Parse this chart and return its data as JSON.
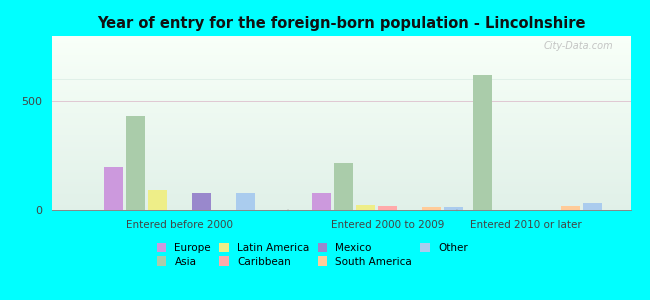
{
  "title": "Year of entry for the foreign-born population - Lincolnshire",
  "groups": [
    "Entered before 2000",
    "Entered 2000 to 2009",
    "Entered 2010 or later"
  ],
  "categories": [
    "Europe",
    "Asia",
    "Latin America",
    "Caribbean",
    "Mexico",
    "South America",
    "Other"
  ],
  "colors": {
    "Europe": "#cc99dd",
    "Asia": "#aaccaa",
    "Latin America": "#eeee88",
    "Caribbean": "#ffaaaa",
    "Mexico": "#9988cc",
    "South America": "#ffcc99",
    "Other": "#aaccee"
  },
  "values": {
    "Entered before 2000": {
      "Europe": 200,
      "Asia": 430,
      "Latin America": 90,
      "Caribbean": 0,
      "Mexico": 80,
      "South America": 0,
      "Other": 80
    },
    "Entered 2000 to 2009": {
      "Europe": 80,
      "Asia": 215,
      "Latin America": 25,
      "Caribbean": 18,
      "Mexico": 0,
      "South America": 12,
      "Other": 12
    },
    "Entered 2010 or later": {
      "Europe": 0,
      "Asia": 620,
      "Latin America": 0,
      "Caribbean": 0,
      "Mexico": 0,
      "South America": 20,
      "Other": 30
    }
  },
  "ylim": [
    0,
    800
  ],
  "yticks": [
    0,
    500
  ],
  "fig_bg": "#00ffff",
  "plot_bg_top": "#f8fff8",
  "plot_bg_bottom": "#e0f0e8",
  "watermark": "City-Data.com",
  "bar_width": 0.038,
  "group_centers": [
    0.22,
    0.58,
    0.82
  ],
  "xlim": [
    0.0,
    1.0
  ]
}
